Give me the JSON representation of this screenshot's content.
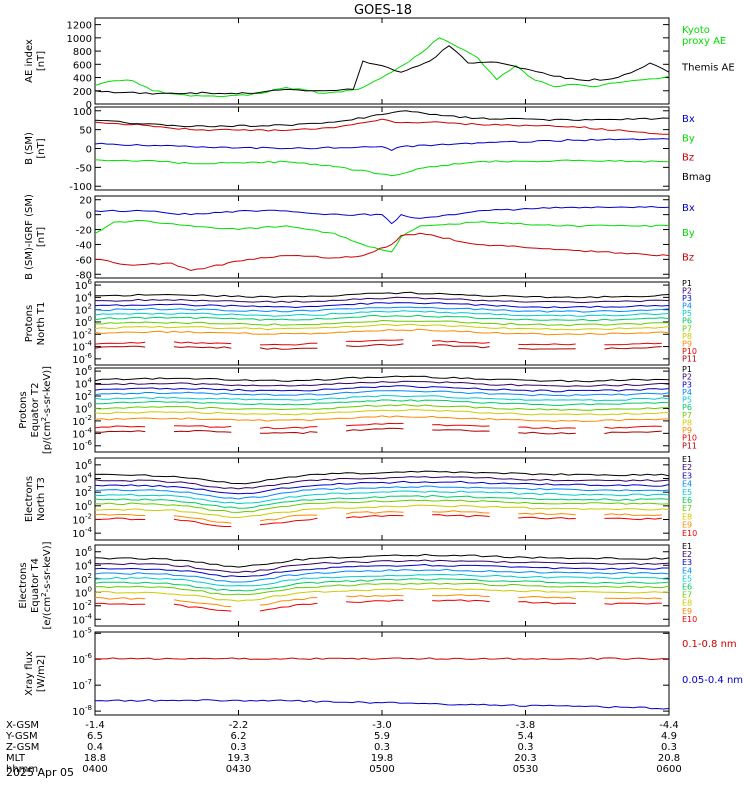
{
  "title": "GOES-18",
  "time_axis": {
    "rows": [
      {
        "label": "X-GSM",
        "values": [
          "-1.4",
          "-2.2",
          "-3.0",
          "-3.8",
          "-4.4"
        ]
      },
      {
        "label": "Y-GSM",
        "values": [
          "6.5",
          "6.2",
          "5.9",
          "5.4",
          "4.9"
        ]
      },
      {
        "label": "Z-GSM",
        "values": [
          "0.4",
          "0.3",
          "0.3",
          "0.3",
          "0.3"
        ]
      },
      {
        "label": "MLT",
        "values": [
          "18.8",
          "19.3",
          "19.8",
          "20.3",
          "20.8"
        ]
      },
      {
        "label": "hhmm",
        "values": [
          "0400",
          "0430",
          "0500",
          "0530",
          "0600"
        ]
      }
    ],
    "date": "2025 Apr 05"
  },
  "colors": {
    "black": "#000000",
    "green": "#00dd00",
    "blue": "#0000cc",
    "red": "#cc0000",
    "channels": [
      "#000000",
      "#330066",
      "#0000cc",
      "#0088ff",
      "#00cccc",
      "#00cc66",
      "#66cc00",
      "#cccc00",
      "#ff8800",
      "#ee0000",
      "#aa0000"
    ]
  },
  "chart_data": [
    {
      "type": "line",
      "ylabel": "AE index\n[nT]",
      "yticks": [
        "1200",
        "1000",
        "800",
        "600",
        "400",
        "200",
        "0"
      ],
      "ylim": [
        0,
        1300
      ],
      "legend": [
        "Kyoto\nproxy AE",
        "Themis AE"
      ],
      "series": [
        {
          "name": "Kyoto proxy AE",
          "color": "green",
          "x": [
            0,
            4,
            8,
            12,
            20,
            32,
            40,
            48,
            55,
            62,
            68,
            72,
            80,
            84,
            88,
            92,
            96,
            100,
            104,
            110,
            116,
            120
          ],
          "y": [
            280,
            350,
            350,
            200,
            120,
            130,
            250,
            160,
            220,
            480,
            760,
            1000,
            700,
            370,
            580,
            360,
            260,
            300,
            260,
            330,
            380,
            420
          ]
        },
        {
          "name": "Themis AE",
          "color": "black",
          "x": [
            0,
            4,
            8,
            12,
            20,
            32,
            40,
            48,
            54,
            56,
            60,
            64,
            70,
            74,
            78,
            84,
            90,
            96,
            102,
            108,
            112,
            116,
            120
          ],
          "y": [
            200,
            170,
            180,
            150,
            170,
            160,
            220,
            200,
            220,
            650,
            580,
            480,
            650,
            880,
            620,
            630,
            530,
            420,
            360,
            380,
            470,
            620,
            480
          ]
        }
      ]
    },
    {
      "type": "line",
      "ylabel": "B (SM)\n[nT]",
      "yticks": [
        "100",
        "50",
        "0",
        "-50",
        "-100"
      ],
      "ylim": [
        -110,
        110
      ],
      "legend": [
        "Bx",
        "By",
        "Bz",
        "Bmag"
      ],
      "series": [
        {
          "name": "Bx",
          "color": "blue",
          "x": [
            0,
            20,
            40,
            60,
            62,
            64,
            80,
            100,
            120
          ],
          "y": [
            12,
            5,
            0,
            5,
            -5,
            5,
            15,
            22,
            25
          ]
        },
        {
          "name": "By",
          "color": "green",
          "x": [
            0,
            10,
            20,
            40,
            50,
            62,
            70,
            80,
            100,
            120
          ],
          "y": [
            -30,
            -32,
            -40,
            -35,
            -48,
            -72,
            -48,
            -35,
            -32,
            -35
          ]
        },
        {
          "name": "Bz",
          "color": "red",
          "x": [
            0,
            10,
            20,
            40,
            50,
            60,
            64,
            70,
            80,
            100,
            112,
            120
          ],
          "y": [
            70,
            62,
            50,
            48,
            55,
            78,
            68,
            70,
            64,
            58,
            45,
            38
          ]
        },
        {
          "name": "Bmag",
          "color": "black",
          "x": [
            0,
            10,
            20,
            40,
            50,
            60,
            65,
            70,
            80,
            100,
            120
          ],
          "y": [
            75,
            65,
            58,
            62,
            70,
            90,
            100,
            90,
            80,
            75,
            80
          ]
        }
      ]
    },
    {
      "type": "line",
      "ylabel": "B (SM)-IGRF (SM)\n[nT]",
      "yticks": [
        "20",
        "0",
        "-20",
        "-40",
        "-60",
        "-80"
      ],
      "ylim": [
        -85,
        25
      ],
      "legend": [
        "Bx",
        "By",
        "Bz"
      ],
      "series": [
        {
          "name": "Bx",
          "color": "blue",
          "x": [
            0,
            10,
            20,
            30,
            40,
            48,
            60,
            62,
            64,
            68,
            80,
            100,
            120
          ],
          "y": [
            5,
            5,
            0,
            5,
            5,
            0,
            0,
            -12,
            0,
            -5,
            5,
            10,
            10
          ]
        },
        {
          "name": "By",
          "color": "green",
          "x": [
            0,
            4,
            10,
            20,
            30,
            40,
            50,
            56,
            62,
            64,
            68,
            80,
            100,
            120
          ],
          "y": [
            -25,
            -10,
            -8,
            -15,
            -20,
            -15,
            -25,
            -40,
            -50,
            -30,
            -15,
            -10,
            -15,
            -15
          ]
        },
        {
          "name": "Bz",
          "color": "red",
          "x": [
            0,
            8,
            16,
            20,
            24,
            32,
            40,
            50,
            56,
            62,
            64,
            68,
            80,
            100,
            120
          ],
          "y": [
            -60,
            -68,
            -65,
            -75,
            -70,
            -60,
            -55,
            -58,
            -55,
            -40,
            -28,
            -25,
            -40,
            -48,
            -55
          ]
        }
      ]
    },
    {
      "type": "line",
      "log": true,
      "ylabel": "Protons\nNorth T1",
      "yticks": [
        "10^6",
        "10^4",
        "10^2",
        "10^0",
        "10^-2",
        "10^-4",
        "10^-6"
      ],
      "ylim": [
        -7,
        6.5
      ],
      "legend": [
        "P1",
        "P2",
        "P3",
        "P4",
        "P5",
        "P6",
        "P7",
        "P8",
        "P9",
        "P10",
        "P11"
      ],
      "channel_levels": [
        4.2,
        3.4,
        2.6,
        1.9,
        1.2,
        0.5,
        -0.3,
        -1.0,
        -1.8,
        -3.5,
        -4.2
      ]
    },
    {
      "type": "line",
      "log": true,
      "ylabel": "Protons\nEquator T2\n[p/(cm^2-s-sr-keV)]",
      "yticks": [
        "10^6",
        "10^4",
        "10^2",
        "10^0",
        "10^-2",
        "10^-4",
        "10^-6"
      ],
      "ylim": [
        -7,
        6.5
      ],
      "legend": [
        "P1",
        "P2",
        "P3",
        "P4",
        "P5",
        "P6",
        "P7",
        "P8",
        "P9",
        "P10",
        "P11"
      ],
      "channel_levels": [
        4.6,
        3.8,
        3.0,
        2.3,
        1.5,
        0.8,
        0.0,
        -0.8,
        -1.8,
        -3.0,
        -3.8
      ]
    },
    {
      "type": "line",
      "log": true,
      "ylabel": "Electrons\nNorth T3",
      "yticks": [
        "10^6",
        "10^4",
        "10^2",
        "10^0",
        "10^-2",
        "10^-4"
      ],
      "ylim": [
        -5,
        7
      ],
      "legend": [
        "E1",
        "E2",
        "E3",
        "E4",
        "E5",
        "E6",
        "E7",
        "E8",
        "E9",
        "E10"
      ],
      "channel_levels": [
        4.5,
        3.7,
        3.0,
        2.3,
        1.6,
        0.9,
        0.3,
        -0.5,
        -1.3,
        -1.9
      ]
    },
    {
      "type": "line",
      "log": true,
      "ylabel": "Electrons\nEquator T4\n[e/(cm^2-s-sr-keV)]",
      "yticks": [
        "10^6",
        "10^4",
        "10^2",
        "10^0",
        "10^-2",
        "10^-4"
      ],
      "ylim": [
        -5,
        7
      ],
      "legend": [
        "E1",
        "E2",
        "E3",
        "E4",
        "E5",
        "E6",
        "E7",
        "E8",
        "E9",
        "E10"
      ],
      "channel_levels": [
        5.0,
        4.2,
        3.5,
        2.8,
        2.1,
        1.4,
        0.8,
        0.0,
        -0.9,
        -1.7
      ]
    },
    {
      "type": "line",
      "log": true,
      "ylabel": "Xray flux\n[W/m2]",
      "yticks": [
        "10^-5",
        "10^-6",
        "10^-7",
        "10^-8"
      ],
      "ylim": [
        -8.15,
        -4.95
      ],
      "legend": [
        "0.1-0.8 nm",
        "0.05-0.4 nm"
      ],
      "series": [
        {
          "name": "0.1-0.8 nm",
          "color": "red",
          "x": [
            0,
            120
          ],
          "y": [
            -5.98,
            -5.98
          ]
        },
        {
          "name": "0.05-0.4 nm",
          "color": "blue",
          "x": [
            0,
            20,
            40,
            60,
            80,
            100,
            110,
            120
          ],
          "y": [
            -7.6,
            -7.58,
            -7.6,
            -7.68,
            -7.76,
            -7.82,
            -7.85,
            -7.9
          ]
        }
      ]
    }
  ]
}
